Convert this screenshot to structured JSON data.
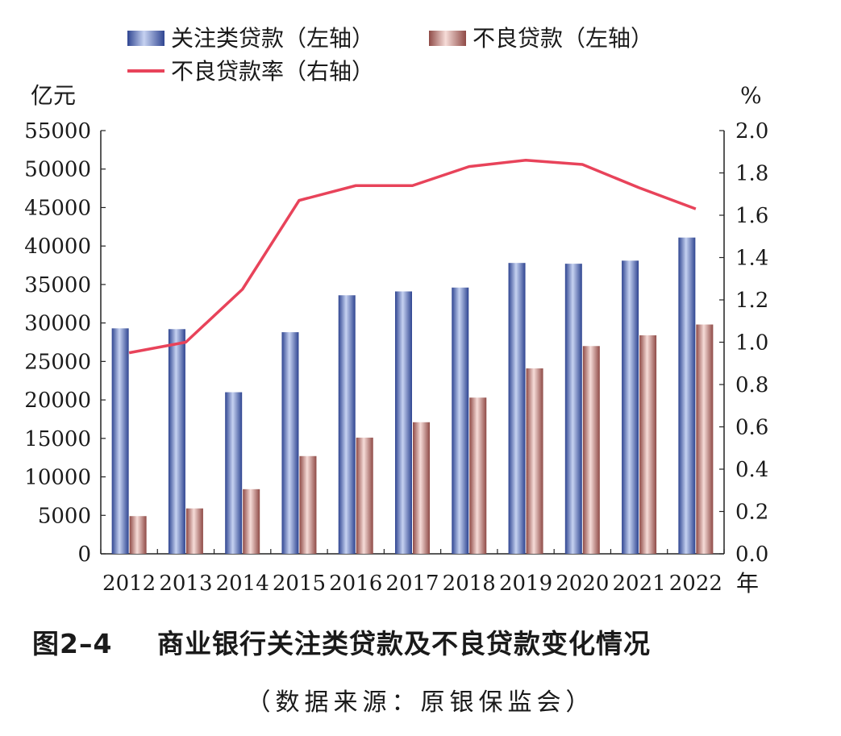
{
  "chart_data": {
    "type": "bar",
    "categories": [
      "2012",
      "2013",
      "2014",
      "2015",
      "2016",
      "2017",
      "2018",
      "2019",
      "2020",
      "2021",
      "2022"
    ],
    "series": [
      {
        "name": "关注类贷款（左轴）",
        "type": "bar",
        "axis": "left",
        "color": "#5a73c0",
        "values": [
          29300,
          29200,
          21000,
          28800,
          33600,
          34100,
          34600,
          37800,
          37700,
          38100,
          41100
        ]
      },
      {
        "name": "不良贷款（左轴）",
        "type": "bar",
        "axis": "left",
        "color": "#c07d7a",
        "values": [
          4900,
          5900,
          8400,
          12700,
          15100,
          17100,
          20300,
          24100,
          27000,
          28400,
          29800
        ]
      },
      {
        "name": "不良贷款率（右轴）",
        "type": "line",
        "axis": "right",
        "color": "#e8435a",
        "values": [
          0.95,
          1.0,
          1.25,
          1.67,
          1.74,
          1.74,
          1.83,
          1.86,
          1.84,
          1.73,
          1.63
        ]
      }
    ],
    "left_axis": {
      "unit": "亿元",
      "ylim": [
        0,
        55000
      ],
      "ticks": [
        "0",
        "5000",
        "10000",
        "15000",
        "20000",
        "25000",
        "30000",
        "35000",
        "40000",
        "45000",
        "50000",
        "55000"
      ]
    },
    "right_axis": {
      "unit": "%",
      "ylim": [
        0,
        2.0
      ],
      "ticks": [
        "0.0",
        "0.2",
        "0.4",
        "0.6",
        "0.8",
        "1.0",
        "1.2",
        "1.4",
        "1.6",
        "1.8",
        "2.0"
      ]
    },
    "x_unit": "年",
    "grid": false,
    "legend_position": "top"
  },
  "caption": {
    "number": "图2–4",
    "title": "商业银行关注类贷款及不良贷款变化情况",
    "source": "（数据来源：原银保监会）"
  }
}
